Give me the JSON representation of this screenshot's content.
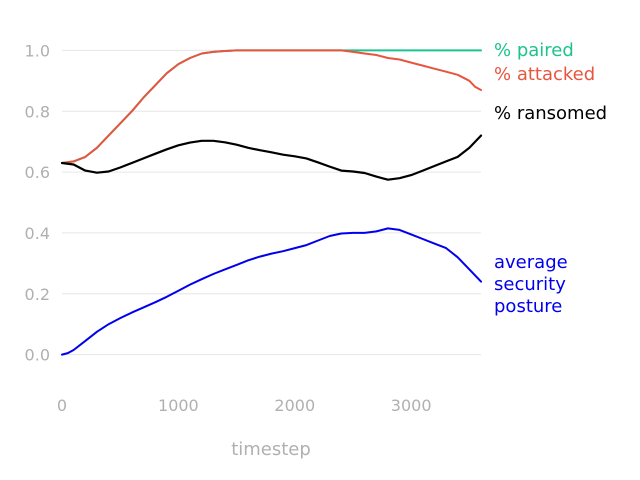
{
  "chart_data": {
    "type": "line",
    "xlabel": "timestep",
    "ylabel": "",
    "xlim": [
      0,
      3600
    ],
    "ylim": [
      -0.1,
      1.1
    ],
    "xticks": [
      0,
      1000,
      2000,
      3000
    ],
    "yticks": [
      0.0,
      0.2,
      0.4,
      0.6,
      0.8,
      1.0
    ],
    "ytick_labels": [
      "0.0",
      "0.2",
      "0.4",
      "0.6",
      "0.8",
      "1.0"
    ],
    "grid": "horizontal",
    "legend_placement": "right, inline labels",
    "series": [
      {
        "name": "% paired",
        "color": "#1cc38d",
        "x": [
          0,
          100,
          200,
          300,
          400,
          500,
          600,
          700,
          800,
          900,
          1000,
          1100,
          1200,
          1300,
          1400,
          1500,
          1600,
          1700,
          1800,
          2000,
          2200,
          2400,
          2600,
          2800,
          3000,
          3200,
          3400,
          3600
        ],
        "y": [
          0.63,
          0.635,
          0.65,
          0.68,
          0.72,
          0.76,
          0.8,
          0.845,
          0.885,
          0.925,
          0.955,
          0.975,
          0.99,
          0.995,
          0.998,
          1.0,
          1.0,
          1.0,
          1.0,
          1.0,
          1.0,
          1.0,
          1.0,
          1.0,
          1.0,
          1.0,
          1.0,
          1.0
        ]
      },
      {
        "name": "% attacked",
        "color": "#e8553e",
        "x": [
          0,
          100,
          200,
          300,
          400,
          500,
          600,
          700,
          800,
          900,
          1000,
          1100,
          1200,
          1300,
          1400,
          1500,
          1600,
          1700,
          1800,
          2000,
          2200,
          2400,
          2500,
          2600,
          2700,
          2800,
          2900,
          3000,
          3100,
          3200,
          3300,
          3400,
          3500,
          3550,
          3600
        ],
        "y": [
          0.63,
          0.635,
          0.65,
          0.68,
          0.72,
          0.76,
          0.8,
          0.845,
          0.885,
          0.925,
          0.955,
          0.975,
          0.99,
          0.995,
          0.998,
          1.0,
          1.0,
          1.0,
          1.0,
          1.0,
          1.0,
          1.0,
          0.995,
          0.99,
          0.985,
          0.975,
          0.97,
          0.96,
          0.95,
          0.94,
          0.93,
          0.92,
          0.9,
          0.88,
          0.87
        ]
      },
      {
        "name": "% ransomed",
        "color": "#000000",
        "x": [
          0,
          100,
          200,
          300,
          400,
          500,
          600,
          700,
          800,
          900,
          1000,
          1100,
          1200,
          1300,
          1400,
          1500,
          1600,
          1700,
          1800,
          1900,
          2000,
          2100,
          2200,
          2300,
          2400,
          2500,
          2600,
          2700,
          2800,
          2900,
          3000,
          3100,
          3200,
          3300,
          3400,
          3500,
          3600
        ],
        "y": [
          0.63,
          0.625,
          0.605,
          0.598,
          0.602,
          0.615,
          0.63,
          0.645,
          0.66,
          0.675,
          0.688,
          0.697,
          0.703,
          0.703,
          0.698,
          0.69,
          0.68,
          0.672,
          0.665,
          0.657,
          0.652,
          0.645,
          0.632,
          0.618,
          0.605,
          0.602,
          0.597,
          0.585,
          0.575,
          0.58,
          0.59,
          0.605,
          0.62,
          0.635,
          0.65,
          0.68,
          0.72
        ]
      },
      {
        "name": "average security posture",
        "color": "#0000ee",
        "x": [
          0,
          50,
          100,
          200,
          300,
          400,
          500,
          600,
          700,
          800,
          900,
          1000,
          1100,
          1200,
          1300,
          1400,
          1500,
          1600,
          1700,
          1800,
          1900,
          2000,
          2100,
          2200,
          2300,
          2400,
          2500,
          2600,
          2700,
          2800,
          2900,
          3000,
          3100,
          3200,
          3300,
          3400,
          3500,
          3600
        ],
        "y": [
          0.0,
          0.005,
          0.015,
          0.045,
          0.075,
          0.1,
          0.12,
          0.138,
          0.155,
          0.172,
          0.19,
          0.21,
          0.23,
          0.248,
          0.265,
          0.28,
          0.295,
          0.31,
          0.322,
          0.332,
          0.34,
          0.35,
          0.36,
          0.375,
          0.39,
          0.398,
          0.4,
          0.4,
          0.405,
          0.415,
          0.41,
          0.395,
          0.38,
          0.365,
          0.35,
          0.32,
          0.28,
          0.24
        ]
      }
    ]
  }
}
